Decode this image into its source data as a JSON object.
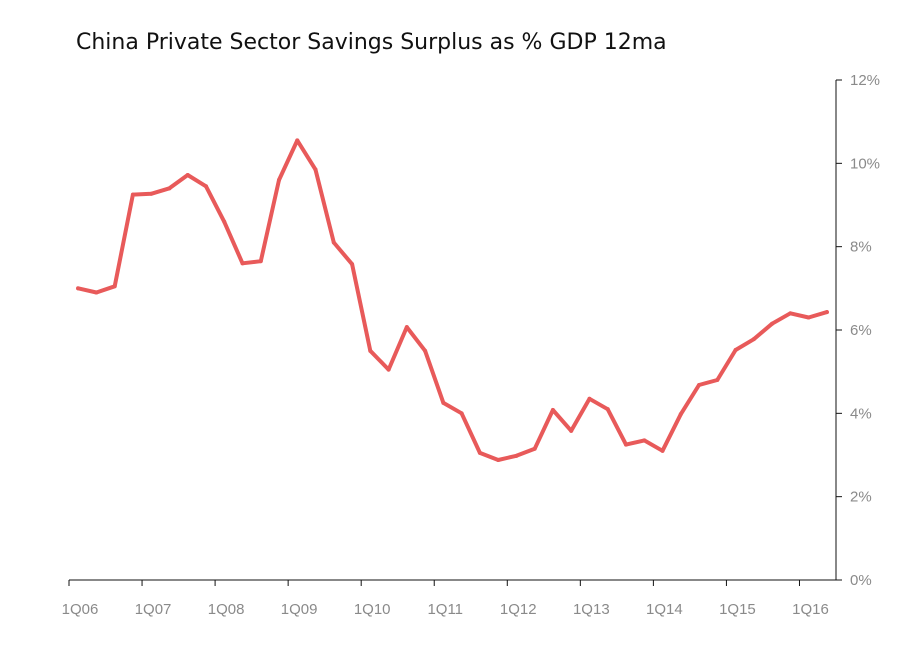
{
  "chart_data": {
    "type": "line",
    "title": "China Private Sector Savings Surplus as % GDP 12ma",
    "xlabel": "",
    "ylabel": "",
    "ylim": [
      0,
      12
    ],
    "y_axis_position": "right",
    "grid": false,
    "legend": "none",
    "x_tick_labels": [
      "1Q06",
      "1Q07",
      "1Q08",
      "1Q09",
      "1Q10",
      "1Q11",
      "1Q12",
      "1Q13",
      "1Q14",
      "1Q15",
      "1Q16"
    ],
    "y_tick_labels": [
      "0%",
      "2%",
      "4%",
      "6%",
      "8%",
      "10%",
      "12%"
    ],
    "y_ticks": [
      0,
      2,
      4,
      6,
      8,
      10,
      12
    ],
    "series": [
      {
        "color": "#e85a5a",
        "x": [
          2006.125,
          2006.375,
          2006.625,
          2006.875,
          2007.125,
          2007.375,
          2007.625,
          2007.875,
          2008.125,
          2008.375,
          2008.625,
          2008.875,
          2009.125,
          2009.375,
          2009.625,
          2009.875,
          2010.125,
          2010.375,
          2010.625,
          2010.875,
          2011.125,
          2011.375,
          2011.625,
          2011.875,
          2012.125,
          2012.375,
          2012.625,
          2012.875,
          2013.125,
          2013.375,
          2013.625,
          2013.875,
          2014.125,
          2014.375,
          2014.625,
          2014.875,
          2015.125,
          2015.375,
          2015.625,
          2015.875,
          2016.125,
          2016.375
        ],
        "values": [
          7.0,
          6.9,
          7.05,
          9.25,
          9.27,
          9.4,
          9.72,
          9.45,
          8.6,
          7.6,
          7.65,
          9.6,
          10.55,
          9.85,
          8.1,
          7.58,
          5.5,
          5.05,
          6.07,
          5.5,
          4.25,
          4.0,
          3.05,
          2.88,
          2.98,
          3.15,
          4.08,
          3.58,
          4.35,
          4.1,
          3.25,
          3.35,
          3.1,
          3.98,
          4.68,
          4.8,
          5.52,
          5.78,
          6.15,
          6.4,
          6.3,
          6.43
        ]
      }
    ]
  }
}
